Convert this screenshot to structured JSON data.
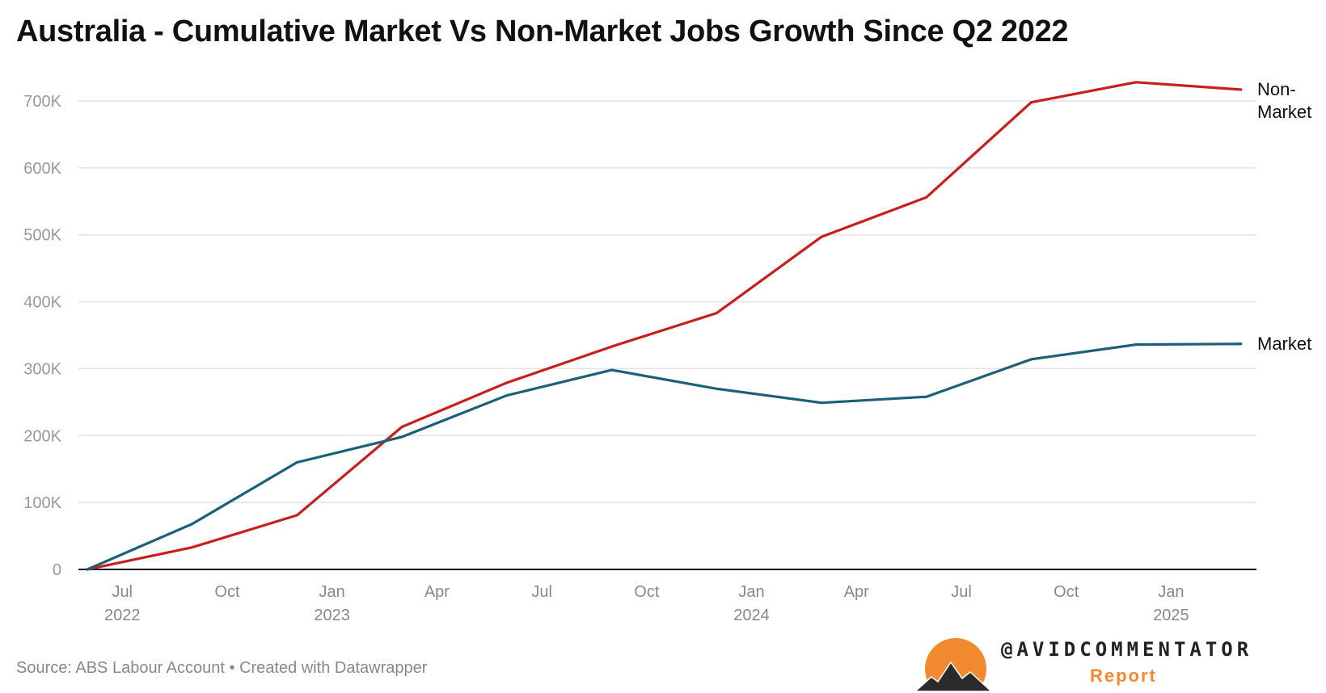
{
  "title": "Australia - Cumulative Market Vs Non-Market Jobs Growth Since Q2 2022",
  "source": "Source: ABS Labour Account • Created with Datawrapper",
  "logo": {
    "handle": "@AVIDCOMMENTATOR",
    "sub": "Report"
  },
  "colors": {
    "non_market": "#c81e1e",
    "market": "#1a6078",
    "grid": "#e3e3e3",
    "axis": "#111111"
  },
  "chart_data": {
    "type": "line",
    "title": "Australia - Cumulative Market Vs Non-Market Jobs Growth Since Q2 2022",
    "xlabel": "",
    "ylabel": "",
    "x": [
      "2022-06",
      "2022-09",
      "2022-12",
      "2023-03",
      "2023-06",
      "2023-09",
      "2023-12",
      "2024-03",
      "2024-06",
      "2024-09",
      "2024-12",
      "2025-03"
    ],
    "series": [
      {
        "name": "Non-Market",
        "label": [
          "Non-",
          "Market"
        ],
        "values": [
          0,
          33000,
          81000,
          213000,
          279000,
          333000,
          383000,
          497000,
          556000,
          698000,
          728000,
          717000
        ]
      },
      {
        "name": "Market",
        "label": [
          "Market"
        ],
        "values": [
          0,
          68000,
          160000,
          198000,
          260000,
          298000,
          270000,
          249000,
          258000,
          314000,
          336000,
          337000
        ]
      }
    ],
    "ylim": [
      0,
      700000
    ],
    "yticks": [
      {
        "v": 0,
        "label": "0"
      },
      {
        "v": 100000,
        "label": "100K"
      },
      {
        "v": 200000,
        "label": "200K"
      },
      {
        "v": 300000,
        "label": "300K"
      },
      {
        "v": 400000,
        "label": "400K"
      },
      {
        "v": 500000,
        "label": "500K"
      },
      {
        "v": 600000,
        "label": "600K"
      },
      {
        "v": 700000,
        "label": "700K"
      }
    ],
    "xticks": [
      {
        "m": 1,
        "label": "Jul",
        "year": "2022"
      },
      {
        "m": 4,
        "label": "Oct",
        "year": ""
      },
      {
        "m": 7,
        "label": "Jan",
        "year": "2023"
      },
      {
        "m": 10,
        "label": "Apr",
        "year": ""
      },
      {
        "m": 13,
        "label": "Jul",
        "year": ""
      },
      {
        "m": 16,
        "label": "Oct",
        "year": ""
      },
      {
        "m": 19,
        "label": "Jan",
        "year": "2024"
      },
      {
        "m": 22,
        "label": "Apr",
        "year": ""
      },
      {
        "m": 25,
        "label": "Jul",
        "year": ""
      },
      {
        "m": 28,
        "label": "Oct",
        "year": ""
      },
      {
        "m": 31,
        "label": "Jan",
        "year": "2025"
      }
    ],
    "grid": true,
    "legend": "direct labels at right"
  }
}
